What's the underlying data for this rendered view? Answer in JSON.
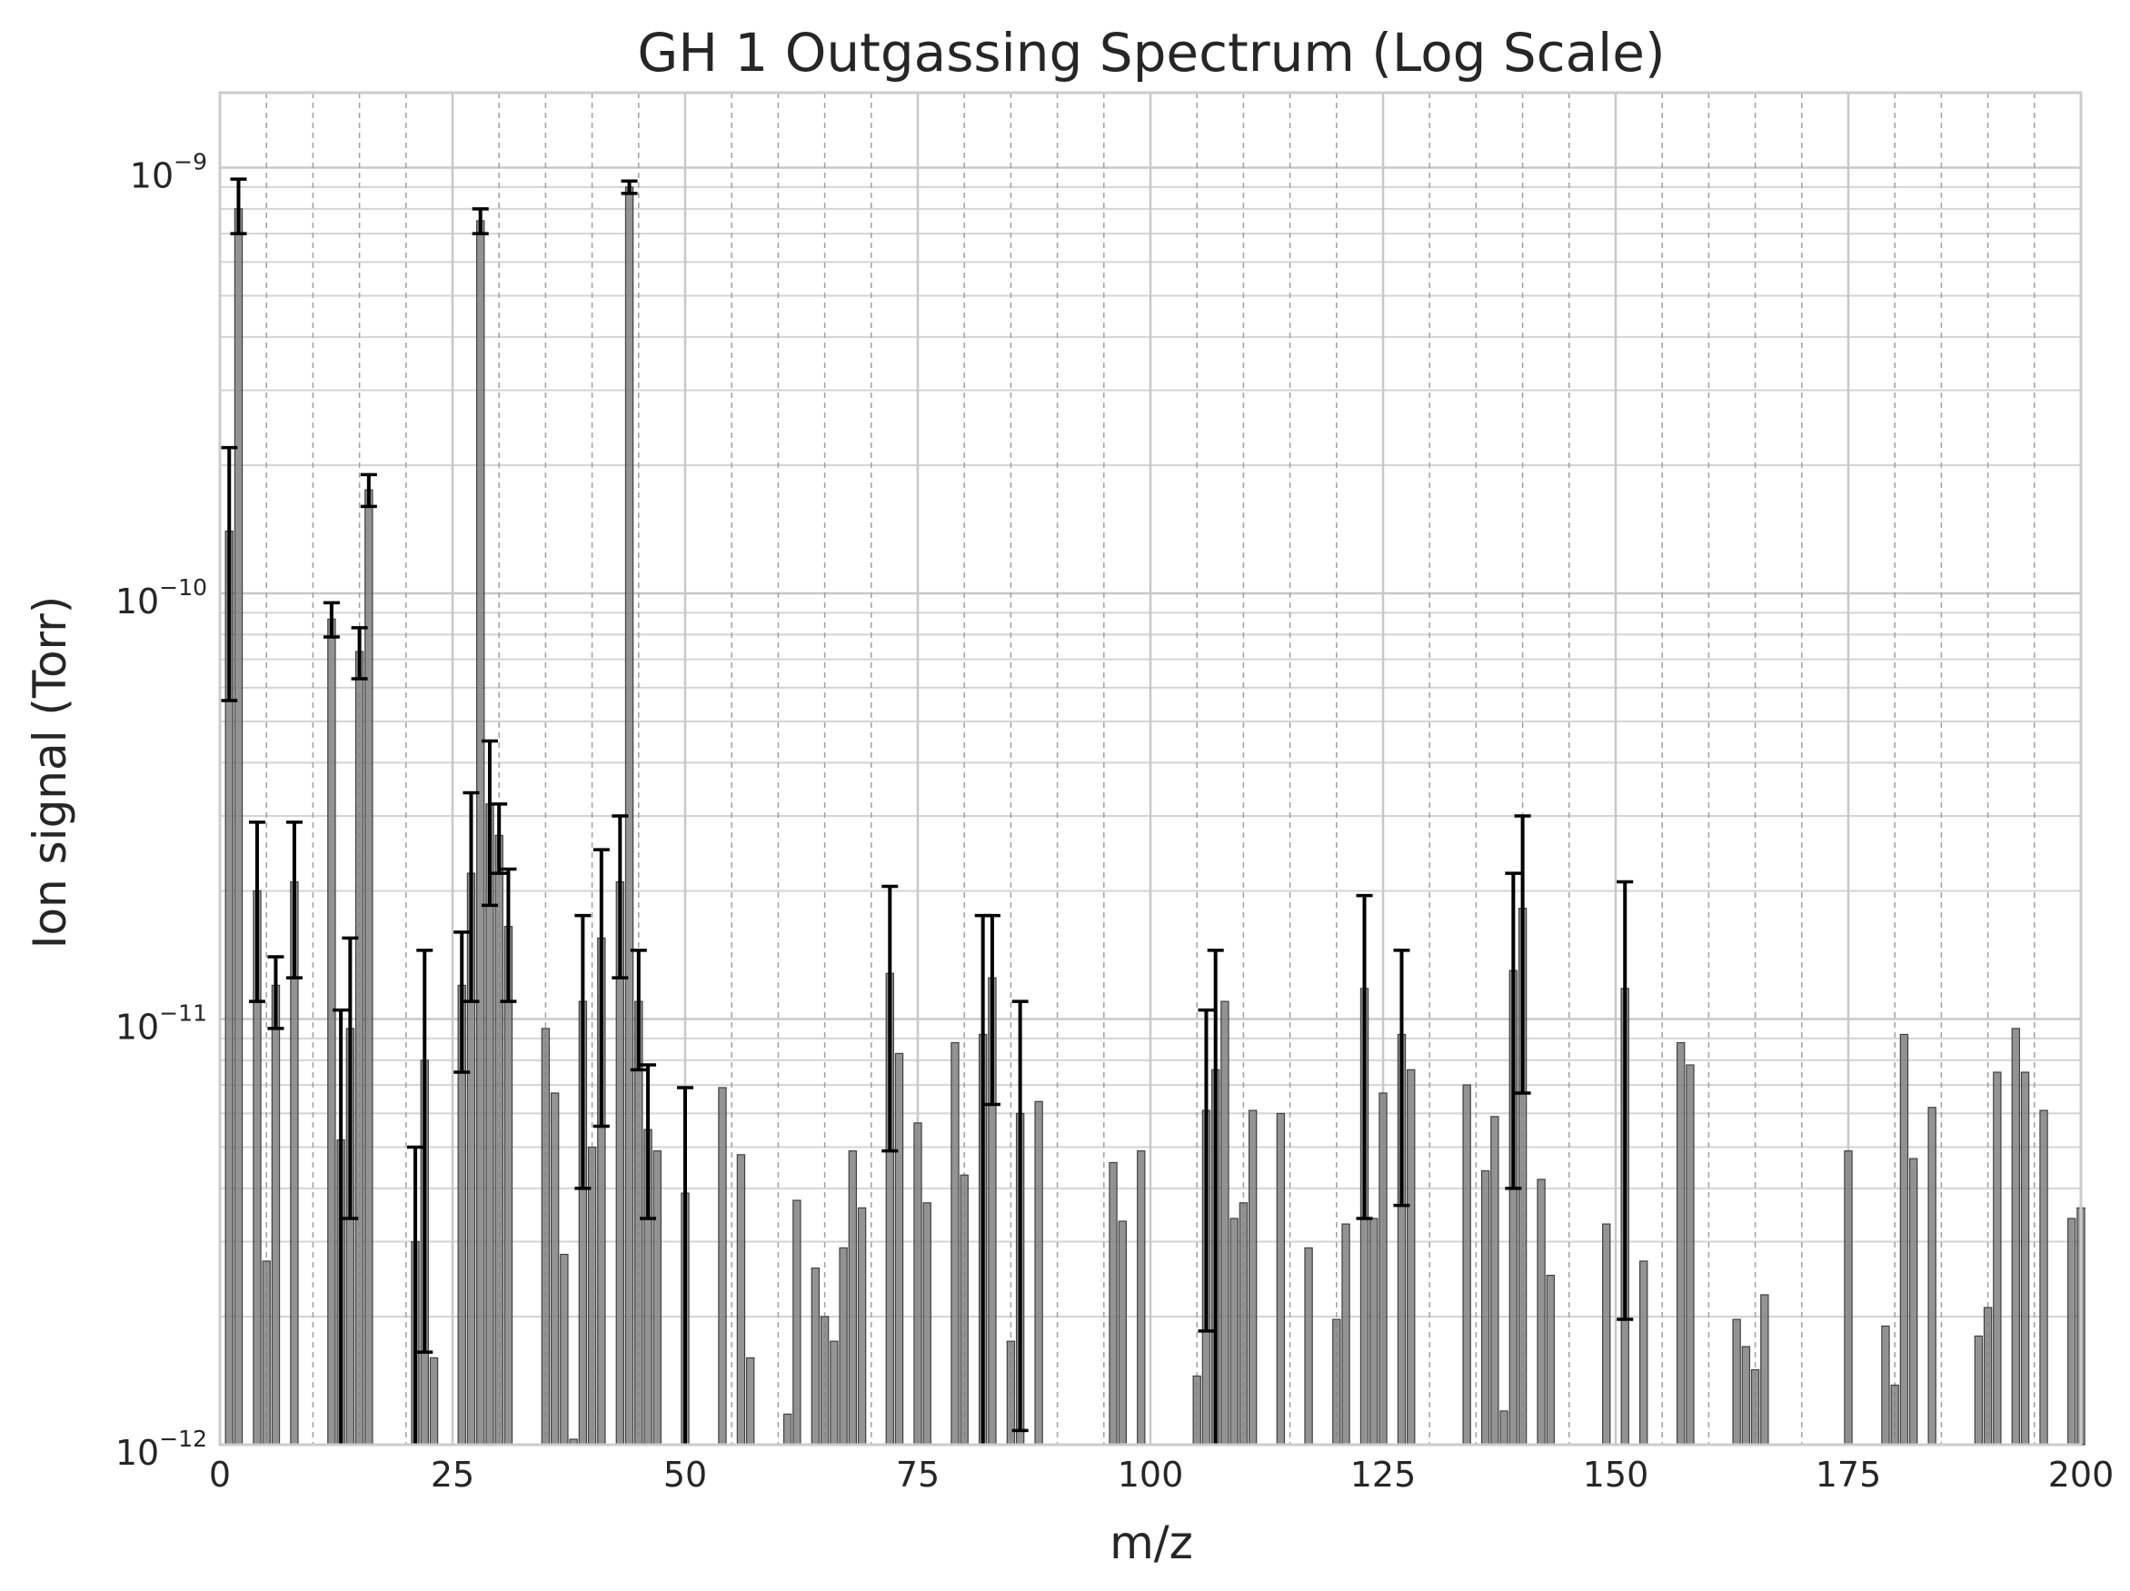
{
  "chart_data": {
    "type": "bar",
    "title": "GH 1 Outgassing Spectrum (Log Scale)",
    "xlabel": "m/z",
    "ylabel": "Ion signal (Torr)",
    "xlim": [
      0,
      200
    ],
    "ylim": [
      1e-12,
      1.5e-09
    ],
    "yscale": "log",
    "grid": true,
    "legend": "none",
    "x_ticks": [
      "0",
      "25",
      "50",
      "75",
      "100",
      "125",
      "150",
      "175",
      "200"
    ],
    "y_ticks": [
      {
        "base": "10",
        "exp": "−12"
      },
      {
        "base": "10",
        "exp": "−11"
      },
      {
        "base": "10",
        "exp": "−10"
      },
      {
        "base": "10",
        "exp": "−9"
      }
    ],
    "bar_color": "#808080",
    "bar_edge_color": "#404040",
    "error_bar_color": "#000000",
    "bars": [
      {
        "x": 1,
        "y": 1.4e-10,
        "lo": 5.6e-11,
        "hi": 2.2e-10
      },
      {
        "x": 2,
        "y": 8e-10,
        "lo": 7e-10,
        "hi": 9.4e-10
      },
      {
        "x": 4,
        "y": 2e-11,
        "lo": 1.1e-11,
        "hi": 2.9e-11
      },
      {
        "x": 5,
        "y": 2.7e-12
      },
      {
        "x": 6,
        "y": 1.2e-11,
        "lo": 9.5e-12,
        "hi": 1.4e-11
      },
      {
        "x": 8,
        "y": 2.1e-11,
        "lo": 1.25e-11,
        "hi": 2.9e-11
      },
      {
        "x": 12,
        "y": 8.7e-11,
        "lo": 7.9e-11,
        "hi": 9.5e-11
      },
      {
        "x": 13,
        "y": 5.2e-12,
        "lo": 1e-12,
        "hi": 1.05e-11
      },
      {
        "x": 14,
        "y": 9.5e-12,
        "lo": 3.4e-12,
        "hi": 1.55e-11
      },
      {
        "x": 15,
        "y": 7.3e-11,
        "lo": 6.3e-11,
        "hi": 8.3e-11
      },
      {
        "x": 16,
        "y": 1.75e-10,
        "lo": 1.6e-10,
        "hi": 1.9e-10
      },
      {
        "x": 21,
        "y": 3e-12,
        "lo": 1e-12,
        "hi": 5e-12
      },
      {
        "x": 22,
        "y": 8e-12,
        "lo": 1.65e-12,
        "hi": 1.45e-11
      },
      {
        "x": 23,
        "y": 1.6e-12
      },
      {
        "x": 26,
        "y": 1.2e-11,
        "lo": 7.5e-12,
        "hi": 1.6e-11
      },
      {
        "x": 27,
        "y": 2.2e-11,
        "lo": 1.1e-11,
        "hi": 3.4e-11
      },
      {
        "x": 28,
        "y": 7.5e-10,
        "lo": 7e-10,
        "hi": 8e-10
      },
      {
        "x": 29,
        "y": 3.2e-11,
        "lo": 1.85e-11,
        "hi": 4.5e-11
      },
      {
        "x": 30,
        "y": 2.7e-11,
        "lo": 2.2e-11,
        "hi": 3.2e-11
      },
      {
        "x": 31,
        "y": 1.65e-11,
        "lo": 1.1e-11,
        "hi": 2.25e-11
      },
      {
        "x": 35,
        "y": 9.5e-12
      },
      {
        "x": 36,
        "y": 6.7e-12
      },
      {
        "x": 37,
        "y": 2.8e-12
      },
      {
        "x": 38,
        "y": 1.03e-12
      },
      {
        "x": 39,
        "y": 1.1e-11,
        "lo": 4e-12,
        "hi": 1.75e-11
      },
      {
        "x": 40,
        "y": 5e-12
      },
      {
        "x": 41,
        "y": 1.55e-11,
        "lo": 5.6e-12,
        "hi": 2.5e-11
      },
      {
        "x": 43,
        "y": 2.1e-11,
        "lo": 1.25e-11,
        "hi": 3e-11
      },
      {
        "x": 44,
        "y": 9e-10,
        "lo": 8.7e-10,
        "hi": 9.3e-10
      },
      {
        "x": 45,
        "y": 1.1e-11,
        "lo": 7.6e-12,
        "hi": 1.45e-11
      },
      {
        "x": 46,
        "y": 5.5e-12,
        "lo": 3.4e-12,
        "hi": 7.8e-12
      },
      {
        "x": 47,
        "y": 4.9e-12
      },
      {
        "x": 50,
        "y": 3.9e-12,
        "lo": 1e-12,
        "hi": 6.9e-12
      },
      {
        "x": 54,
        "y": 6.9e-12
      },
      {
        "x": 56,
        "y": 4.8e-12
      },
      {
        "x": 57,
        "y": 1.6e-12
      },
      {
        "x": 61,
        "y": 1.18e-12
      },
      {
        "x": 62,
        "y": 3.75e-12
      },
      {
        "x": 64,
        "y": 2.6e-12
      },
      {
        "x": 65,
        "y": 2e-12
      },
      {
        "x": 66,
        "y": 1.75e-12
      },
      {
        "x": 67,
        "y": 2.9e-12
      },
      {
        "x": 68,
        "y": 4.9e-12
      },
      {
        "x": 69,
        "y": 3.6e-12
      },
      {
        "x": 72,
        "y": 1.28e-11,
        "lo": 4.9e-12,
        "hi": 2.05e-11
      },
      {
        "x": 73,
        "y": 8.3e-12
      },
      {
        "x": 75,
        "y": 5.7e-12
      },
      {
        "x": 76,
        "y": 3.7e-12
      },
      {
        "x": 79,
        "y": 8.8e-12
      },
      {
        "x": 80,
        "y": 4.3e-12
      },
      {
        "x": 82,
        "y": 9.2e-12,
        "lo": 1e-12,
        "hi": 1.75e-11
      },
      {
        "x": 83,
        "y": 1.25e-11,
        "lo": 6.3e-12,
        "hi": 1.75e-11
      },
      {
        "x": 85,
        "y": 1.75e-12
      },
      {
        "x": 86,
        "y": 6e-12,
        "lo": 1.08e-12,
        "hi": 1.1e-11
      },
      {
        "x": 88,
        "y": 6.4e-12
      },
      {
        "x": 96,
        "y": 4.6e-12
      },
      {
        "x": 97,
        "y": 3.35e-12
      },
      {
        "x": 99,
        "y": 4.9e-12
      },
      {
        "x": 105,
        "y": 1.45e-12
      },
      {
        "x": 106,
        "y": 6.1e-12,
        "lo": 1.85e-12,
        "hi": 1.05e-11
      },
      {
        "x": 107,
        "y": 7.6e-12,
        "lo": 1e-12,
        "hi": 1.45e-11
      },
      {
        "x": 108,
        "y": 1.1e-11
      },
      {
        "x": 109,
        "y": 3.4e-12
      },
      {
        "x": 110,
        "y": 3.7e-12
      },
      {
        "x": 111,
        "y": 6.1e-12
      },
      {
        "x": 114,
        "y": 6e-12
      },
      {
        "x": 117,
        "y": 2.9e-12
      },
      {
        "x": 120,
        "y": 1.97e-12
      },
      {
        "x": 121,
        "y": 3.3e-12
      },
      {
        "x": 123,
        "y": 1.18e-11,
        "lo": 3.4e-12,
        "hi": 1.95e-11
      },
      {
        "x": 124,
        "y": 3.4e-12
      },
      {
        "x": 125,
        "y": 6.7e-12
      },
      {
        "x": 127,
        "y": 9.2e-12,
        "lo": 3.65e-12,
        "hi": 1.45e-11
      },
      {
        "x": 128,
        "y": 7.6e-12
      },
      {
        "x": 134,
        "y": 7e-12
      },
      {
        "x": 136,
        "y": 4.4e-12
      },
      {
        "x": 137,
        "y": 5.9e-12
      },
      {
        "x": 138,
        "y": 1.2e-12
      },
      {
        "x": 139,
        "y": 1.3e-11,
        "lo": 4e-12,
        "hi": 2.2e-11
      },
      {
        "x": 140,
        "y": 1.82e-11,
        "lo": 6.7e-12,
        "hi": 3e-11
      },
      {
        "x": 142,
        "y": 4.2e-12
      },
      {
        "x": 143,
        "y": 2.5e-12
      },
      {
        "x": 149,
        "y": 3.3e-12
      },
      {
        "x": 151,
        "y": 1.18e-11,
        "lo": 1.97e-12,
        "hi": 2.1e-11
      },
      {
        "x": 153,
        "y": 2.7e-12
      },
      {
        "x": 157,
        "y": 8.8e-12
      },
      {
        "x": 158,
        "y": 7.8e-12
      },
      {
        "x": 163,
        "y": 1.97e-12
      },
      {
        "x": 164,
        "y": 1.7e-12
      },
      {
        "x": 165,
        "y": 1.5e-12
      },
      {
        "x": 166,
        "y": 2.25e-12
      },
      {
        "x": 175,
        "y": 4.9e-12
      },
      {
        "x": 179,
        "y": 1.9e-12
      },
      {
        "x": 180,
        "y": 1.38e-12
      },
      {
        "x": 181,
        "y": 9.2e-12
      },
      {
        "x": 182,
        "y": 4.7e-12
      },
      {
        "x": 184,
        "y": 6.2e-12
      },
      {
        "x": 189,
        "y": 1.8e-12
      },
      {
        "x": 190,
        "y": 2.1e-12
      },
      {
        "x": 191,
        "y": 7.5e-12
      },
      {
        "x": 193,
        "y": 9.5e-12
      },
      {
        "x": 194,
        "y": 7.5e-12
      },
      {
        "x": 196,
        "y": 6.1e-12
      },
      {
        "x": 199,
        "y": 3.4e-12
      },
      {
        "x": 200,
        "y": 3.6e-12
      }
    ]
  }
}
